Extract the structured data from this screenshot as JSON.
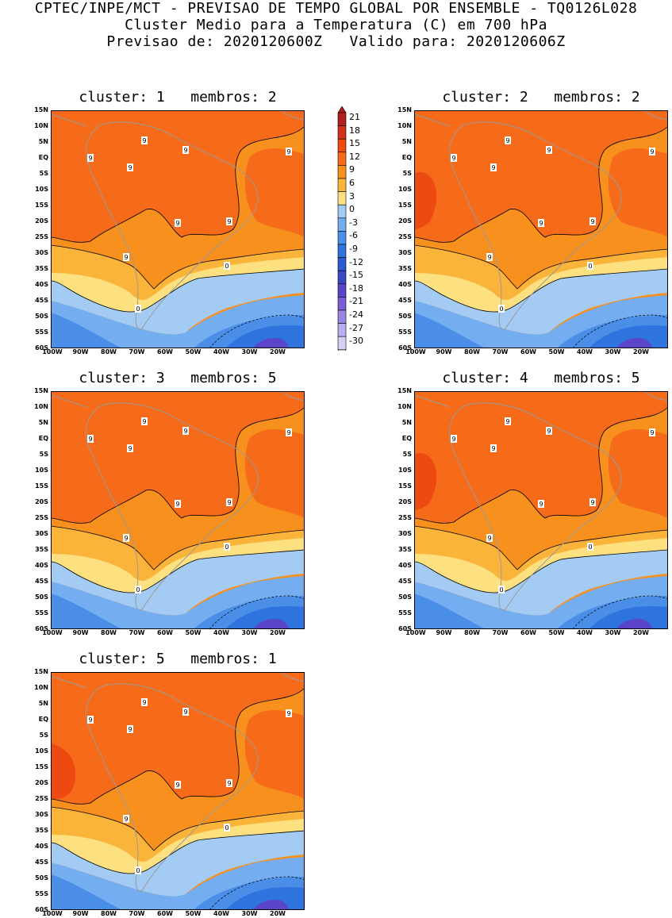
{
  "header": {
    "line1": "CPTEC/INPE/MCT - PREVISAO DE TEMPO GLOBAL POR ENSEMBLE - TQ0126L028",
    "line2": "Cluster Medio para a Temperatura (C) em 700 hPa",
    "line3": "Previsao de: 2020120600Z   Valido para: 2020120606Z"
  },
  "colorbar": {
    "labels": [
      "21",
      "18",
      "15",
      "12",
      "9",
      "6",
      "3",
      "0",
      "-3",
      "-6",
      "-9",
      "-12",
      "-15",
      "-18",
      "-21",
      "-24",
      "-27",
      "-30"
    ],
    "colors": [
      "#b0201c",
      "#d3321e",
      "#ec4a10",
      "#f56b1a",
      "#f8901e",
      "#fbb43a",
      "#fde181",
      "#a4cbf3",
      "#74adf0",
      "#4a8ee8",
      "#2f74de",
      "#2a5cd0",
      "#3c47c4",
      "#5a44c8",
      "#7b5fd6",
      "#9a86e2",
      "#baaeec",
      "#d8d0f2"
    ]
  },
  "axes": {
    "lat_labels": [
      "15N",
      "10N",
      "5N",
      "EQ",
      "5S",
      "10S",
      "15S",
      "20S",
      "25S",
      "30S",
      "35S",
      "40S",
      "45S",
      "50S",
      "55S",
      "60S"
    ],
    "lon_labels": [
      "100W",
      "90W",
      "80W",
      "70W",
      "60W",
      "50W",
      "40W",
      "30W",
      "20W"
    ]
  },
  "panels": [
    {
      "title": "cluster: 1   membros: 2",
      "contour_labels": [
        "9",
        "9",
        "9",
        "9",
        "9",
        "9",
        "9",
        "9",
        "0",
        "0"
      ]
    },
    {
      "title": "cluster: 2   membros: 2",
      "contour_labels": [
        "9",
        "9",
        "9",
        "9",
        "9",
        "9",
        "9",
        "9",
        "0",
        "0"
      ]
    },
    {
      "title": "cluster: 3   membros: 5",
      "contour_labels": [
        "9",
        "9",
        "9",
        "9",
        "9",
        "9",
        "9",
        "9",
        "0",
        "0"
      ]
    },
    {
      "title": "cluster: 4   membros: 5",
      "contour_labels": [
        "9",
        "9",
        "9",
        "9",
        "9",
        "9",
        "9",
        "9",
        "0",
        "0"
      ]
    },
    {
      "title": "cluster: 5   membros: 1",
      "contour_labels": [
        "9",
        "9",
        "9",
        "9",
        "9",
        "9",
        "9",
        "9",
        "0",
        "0"
      ]
    }
  ]
}
